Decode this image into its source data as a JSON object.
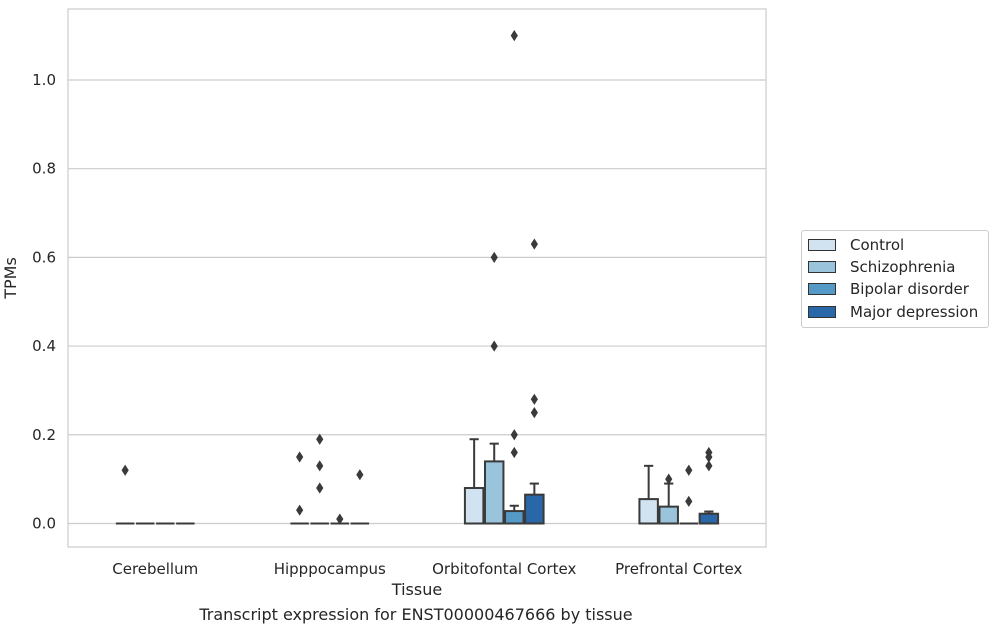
{
  "chart_data": {
    "type": "box",
    "title": "",
    "xlabel": "Tissue",
    "ylabel": "TPMs",
    "ylim": [
      -0.053,
      1.16
    ],
    "yticks": [
      0.0,
      0.2,
      0.4,
      0.6,
      0.8,
      1.0
    ],
    "ytick_labels": [
      "0.0",
      "0.2",
      "0.4",
      "0.6",
      "0.8",
      "1.0"
    ],
    "grid": true,
    "legend_position": "right",
    "categories": [
      "Cerebellum",
      "Hipppocampus",
      "Orbitofontal Cortex",
      "Prefrontal Cortex"
    ],
    "series": [
      {
        "name": "Control",
        "color": "#d1e2f0",
        "boxes": [
          {
            "q1": 0,
            "median": 0,
            "q3": 0,
            "whisker_low": 0,
            "whisker_high": 0,
            "outliers": [
              0.12
            ]
          },
          {
            "q1": 0,
            "median": 0,
            "q3": 0,
            "whisker_low": 0,
            "whisker_high": 0,
            "outliers": [
              0.15,
              0.03
            ]
          },
          {
            "q1": 0,
            "median": 0,
            "q3": 0.08,
            "whisker_low": 0,
            "whisker_high": 0.19,
            "outliers": []
          },
          {
            "q1": 0,
            "median": 0,
            "q3": 0.055,
            "whisker_low": 0,
            "whisker_high": 0.13,
            "outliers": []
          }
        ]
      },
      {
        "name": "Schizophrenia",
        "color": "#9ac3dc",
        "boxes": [
          {
            "q1": 0,
            "median": 0,
            "q3": 0,
            "whisker_low": 0,
            "whisker_high": 0,
            "outliers": []
          },
          {
            "q1": 0,
            "median": 0,
            "q3": 0,
            "whisker_low": 0,
            "whisker_high": 0,
            "outliers": [
              0.19,
              0.13,
              0.08
            ]
          },
          {
            "q1": 0,
            "median": 0,
            "q3": 0.14,
            "whisker_low": 0,
            "whisker_high": 0.18,
            "outliers": [
              0.6,
              0.4
            ]
          },
          {
            "q1": 0,
            "median": 0,
            "q3": 0.038,
            "whisker_low": 0,
            "whisker_high": 0.09,
            "outliers": [
              0.1
            ]
          }
        ]
      },
      {
        "name": "Bipolar disorder",
        "color": "#5599c6",
        "boxes": [
          {
            "q1": 0,
            "median": 0,
            "q3": 0,
            "whisker_low": 0,
            "whisker_high": 0,
            "outliers": []
          },
          {
            "q1": 0,
            "median": 0,
            "q3": 0,
            "whisker_low": 0,
            "whisker_high": 0,
            "outliers": [
              0.01
            ]
          },
          {
            "q1": 0,
            "median": 0,
            "q3": 0.028,
            "whisker_low": 0,
            "whisker_high": 0.04,
            "outliers": [
              1.1,
              0.2,
              0.16
            ]
          },
          {
            "q1": 0,
            "median": 0,
            "q3": 0,
            "whisker_low": 0,
            "whisker_high": 0,
            "outliers": [
              0.12,
              0.05
            ]
          }
        ]
      },
      {
        "name": "Major depression",
        "color": "#2967a8",
        "boxes": [
          {
            "q1": 0,
            "median": 0,
            "q3": 0,
            "whisker_low": 0,
            "whisker_high": 0,
            "outliers": []
          },
          {
            "q1": 0,
            "median": 0,
            "q3": 0,
            "whisker_low": 0,
            "whisker_high": 0,
            "outliers": [
              0.11
            ]
          },
          {
            "q1": 0,
            "median": 0,
            "q3": 0.065,
            "whisker_low": 0,
            "whisker_high": 0.09,
            "outliers": [
              0.63,
              0.28,
              0.25
            ]
          },
          {
            "q1": 0,
            "median": 0,
            "q3": 0.022,
            "whisker_low": 0,
            "whisker_high": 0.027,
            "outliers": [
              0.16,
              0.15,
              0.13
            ]
          }
        ]
      }
    ]
  },
  "legend": {
    "items": [
      "Control",
      "Schizophrenia",
      "Bipolar disorder",
      "Major depression"
    ]
  },
  "caption": "Transcript expression for ENST00000467666 by tissue"
}
